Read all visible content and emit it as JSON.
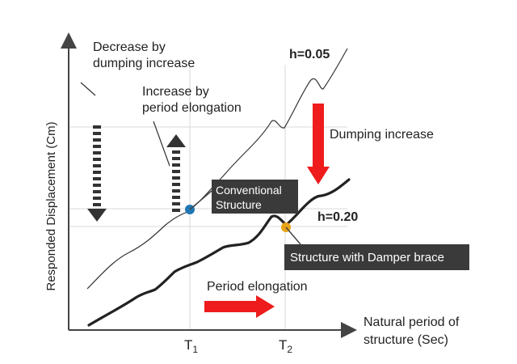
{
  "colors": {
    "axis": "#444444",
    "grid": "#d9d9d9",
    "thin_curve": "#333333",
    "thick_curve": "#222222",
    "red_arrow": "#ee1c1c",
    "dashed_arrow": "#333333",
    "point_conventional": "#1f77b4",
    "point_damper": "#e8a317",
    "callout_bg": "#3a3a3a"
  },
  "axes": {
    "y_label": "Responded Displacement (Cm)",
    "x_label_line1": "Natural period of",
    "x_label_line2": "structure (Sec)",
    "t1_label": "T",
    "t1_sub": "1",
    "t2_label": "T",
    "t2_sub": "2"
  },
  "curves": {
    "h_low": "h=0.05",
    "h_high": "h=0.20"
  },
  "annotations": {
    "decrease_line1": "Decrease by",
    "decrease_line2": "dumping increase",
    "increase_line1": "Increase by",
    "increase_line2": "period elongation",
    "dumping_increase": "Dumping increase",
    "period_elongation": "Period elongation"
  },
  "callouts": {
    "conventional_line1": "Conventional",
    "conventional_line2": "Structure",
    "damper": "Structure with Damper brace"
  }
}
